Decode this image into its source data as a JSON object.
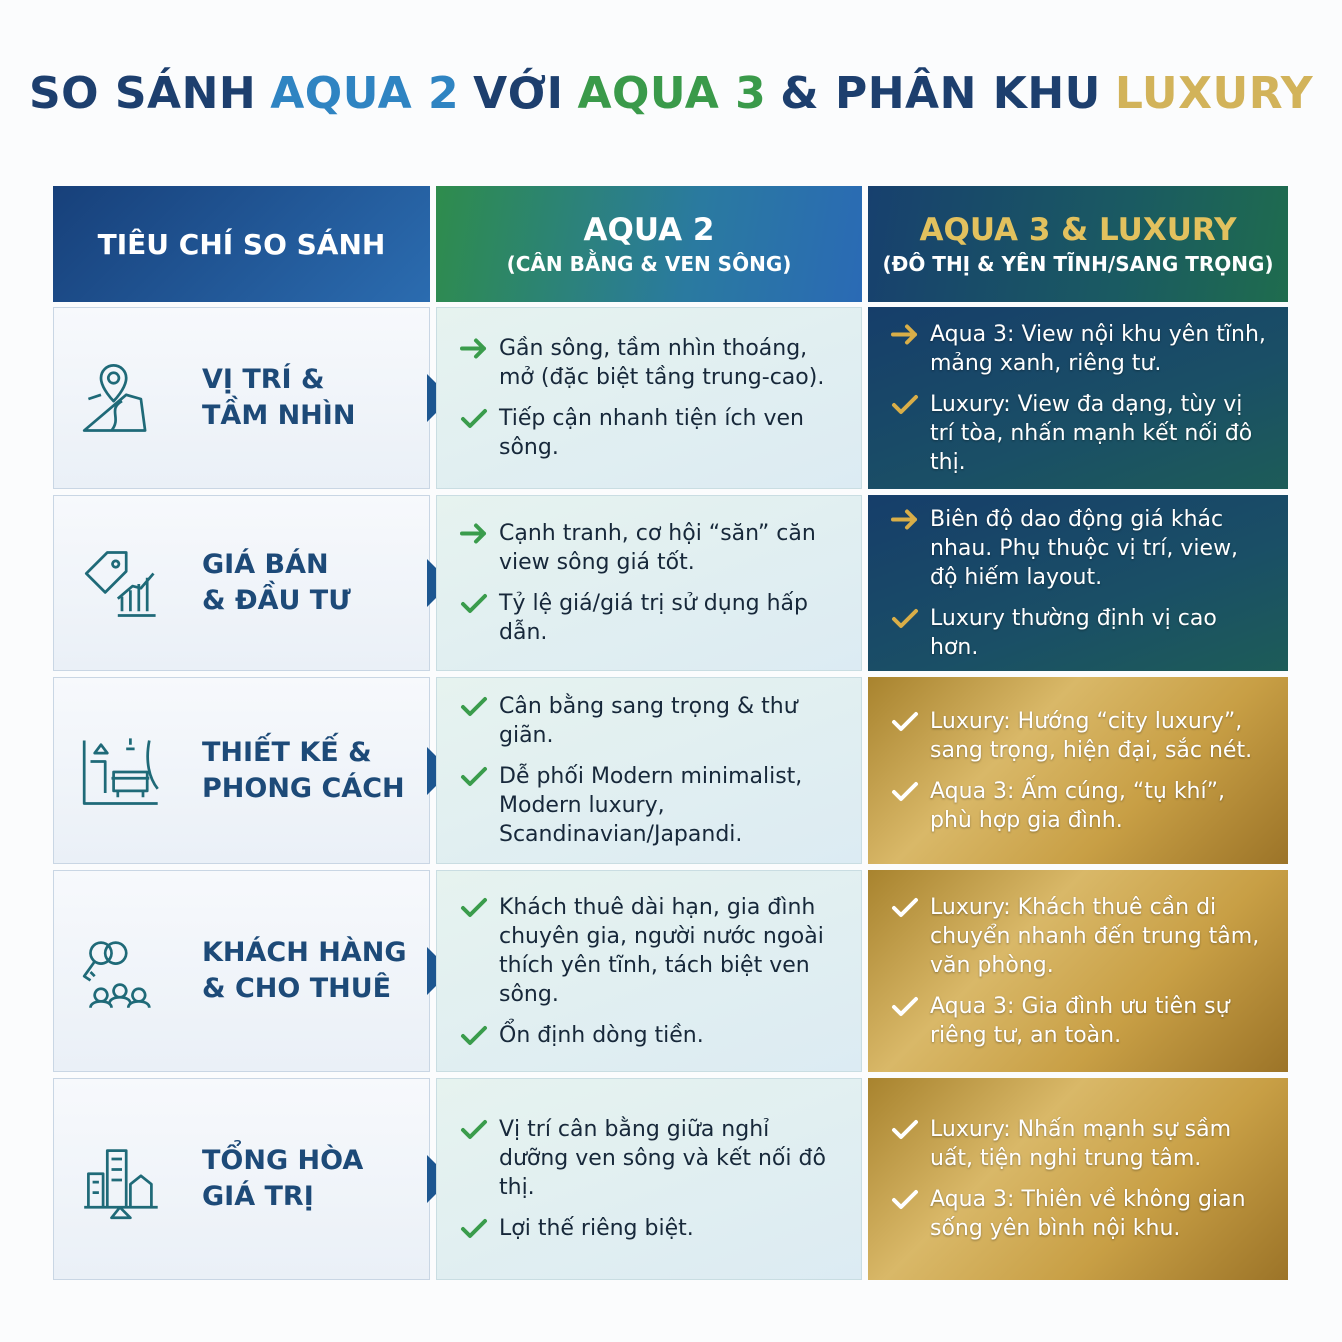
{
  "title": [
    {
      "text": "SO SÁNH",
      "color": "#1d3f6e"
    },
    {
      "text": "AQUA 2",
      "color": "#2f84c2"
    },
    {
      "text": "VỚI",
      "color": "#1d3f6e"
    },
    {
      "text": "AQUA 3",
      "color": "#3a9a4a"
    },
    {
      "text": "& PHÂN KHU",
      "color": "#1d3f6e"
    },
    {
      "text": "LUXURY",
      "color": "#d2b35a"
    }
  ],
  "header": {
    "criteria": "TIÊU CHÍ SO SÁNH",
    "aqua2": {
      "title": "AQUA 2",
      "subtitle": "(CÂN BẰNG & VEN SÔNG)"
    },
    "aqua3": {
      "title": "AQUA 3 & LUXURY",
      "subtitle": "(ĐÔ THỊ & YÊN TĨNH/SANG TRỌNG)"
    }
  },
  "rows": [
    {
      "criteria": [
        "VỊ TRÍ &",
        "TẦM NHÌN"
      ],
      "style": "dark",
      "aqua2": [
        {
          "marker": "arrow",
          "text": "Gần sông, tầm nhìn thoáng, mở (đặc biệt tầng trung-cao)."
        },
        {
          "marker": "check",
          "text": "Tiếp cận nhanh tiện ích ven sông."
        }
      ],
      "aqua3": [
        {
          "marker": "arrow",
          "text": "Aqua 3: View nội khu yên tĩnh, mảng xanh, riêng tư."
        },
        {
          "marker": "check",
          "text": "Luxury: View đa dạng, tùy vị trí tòa, nhấn mạnh kết nối đô thị."
        }
      ]
    },
    {
      "criteria": [
        "GIÁ BÁN",
        "& ĐẦU TƯ"
      ],
      "style": "dark",
      "aqua2": [
        {
          "marker": "arrow",
          "text": "Cạnh tranh, cơ hội “săn” căn view sông giá tốt."
        },
        {
          "marker": "check",
          "text": "Tỷ lệ giá/giá trị sử dụng hấp dẫn."
        }
      ],
      "aqua3": [
        {
          "marker": "arrow",
          "text": "Biên độ dao động giá khác nhau. Phụ thuộc vị trí, view, độ hiếm layout."
        },
        {
          "marker": "check",
          "text": "Luxury thường định vị cao hơn."
        }
      ]
    },
    {
      "criteria": [
        "THIẾT KẾ &",
        "PHONG CÁCH"
      ],
      "style": "gold",
      "aqua2": [
        {
          "marker": "check",
          "text": "Cân bằng sang trọng & thư giãn."
        },
        {
          "marker": "check",
          "text": "Dễ phối Modern minimalist, Modern luxury, Scandinavian/Japandi."
        }
      ],
      "aqua3": [
        {
          "marker": "check",
          "text": "Luxury: Hướng “city luxury”, sang trọng, hiện đại, sắc nét."
        },
        {
          "marker": "check",
          "text": "Aqua 3: Ấm cúng, “tụ khí”, phù hợp gia đình."
        }
      ]
    },
    {
      "criteria": [
        "KHÁCH HÀNG",
        "& CHO THUÊ"
      ],
      "style": "gold",
      "aqua2": [
        {
          "marker": "check",
          "text": "Khách thuê dài hạn, gia đình chuyên gia, người nước ngoài thích yên tĩnh, tách biệt ven sông."
        },
        {
          "marker": "check",
          "text": "Ổn định dòng tiền."
        }
      ],
      "aqua3": [
        {
          "marker": "check",
          "text": "Luxury: Khách thuê cần di chuyển nhanh đến trung tâm, văn phòng."
        },
        {
          "marker": "check",
          "text": "Aqua 3: Gia đình ưu tiên sự riêng tư, an toàn."
        }
      ]
    },
    {
      "criteria": [
        "TỔNG HÒA",
        "GIÁ TRỊ"
      ],
      "style": "gold",
      "aqua2": [
        {
          "marker": "check",
          "text": "Vị trí cân bằng giữa nghỉ dưỡng ven sông và kết nối đô thị."
        },
        {
          "marker": "check",
          "text": "Lợi thế riêng biệt."
        }
      ],
      "aqua3": [
        {
          "marker": "check",
          "text": "Luxury: Nhấn mạnh sự sầm uất, tiện nghi trung tâm."
        },
        {
          "marker": "check",
          "text": "Aqua 3: Thiên về không gian sống yên bình nội khu."
        }
      ]
    }
  ]
}
